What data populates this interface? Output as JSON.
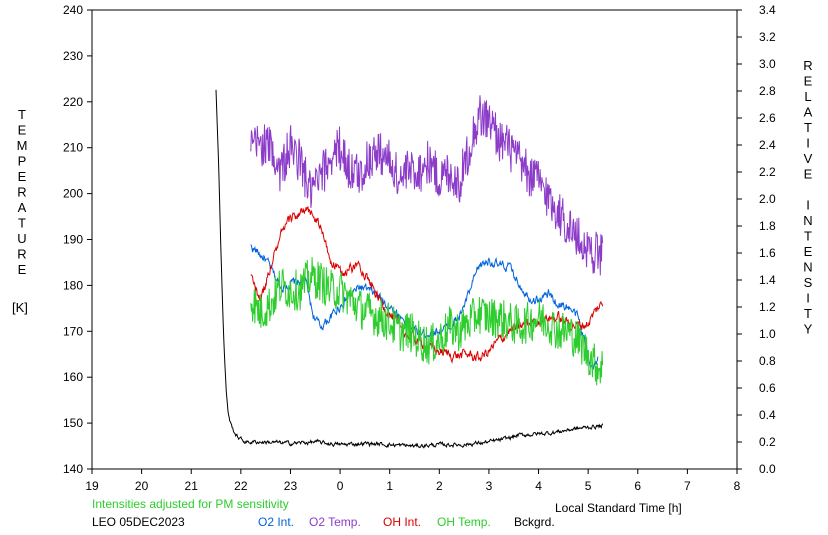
{
  "chart_data": {
    "type": "line",
    "x_axis": {
      "label": "Local Standard Time [h]",
      "ticks": [
        "19",
        "20",
        "21",
        "22",
        "23",
        "0",
        "1",
        "2",
        "3",
        "4",
        "5",
        "6",
        "7",
        "8"
      ]
    },
    "y_left": {
      "label_letters": [
        "T",
        "E",
        "M",
        "P",
        "E",
        "R",
        "A",
        "T",
        "U",
        "R",
        "E"
      ],
      "unit": "[K]",
      "range": [
        140,
        240
      ],
      "ticks": [
        "140",
        "150",
        "160",
        "170",
        "180",
        "190",
        "200",
        "210",
        "220",
        "230",
        "240"
      ]
    },
    "y_right": {
      "label_letters": [
        "R",
        "E",
        "L",
        "A",
        "T",
        "I",
        "V",
        "E",
        "",
        "I",
        "N",
        "T",
        "E",
        "N",
        "S",
        "I",
        "T",
        "Y"
      ],
      "range": [
        0,
        3.4
      ],
      "ticks": [
        "0.0",
        "0.2",
        "0.4",
        "0.6",
        "0.8",
        "1.0",
        "1.2",
        "1.4",
        "1.6",
        "1.8",
        "2.0",
        "2.2",
        "2.4",
        "2.6",
        "2.8",
        "3.0",
        "3.2",
        "3.4"
      ]
    },
    "note": "Intensities adjusted for PM sensitivity",
    "site_date": "LEO 05DEC2023",
    "legend_position": "bottom",
    "series": [
      {
        "name": "O2 Int.",
        "color": "#0064dc",
        "axis": "right",
        "smooth": true,
        "noise": 0.035,
        "points": [
          [
            22.2,
            1.65
          ],
          [
            22.5,
            1.55
          ],
          [
            22.8,
            1.35
          ],
          [
            23.1,
            1.38
          ],
          [
            23.3,
            1.4
          ],
          [
            23.45,
            1.15
          ],
          [
            23.6,
            1.05
          ],
          [
            23.8,
            1.12
          ],
          [
            24.1,
            1.25
          ],
          [
            24.4,
            1.35
          ],
          [
            24.7,
            1.3
          ],
          [
            25.0,
            1.2
          ],
          [
            25.3,
            1.1
          ],
          [
            25.6,
            1.0
          ],
          [
            25.9,
            1.02
          ],
          [
            26.2,
            1.05
          ],
          [
            26.4,
            1.12
          ],
          [
            26.6,
            1.3
          ],
          [
            26.8,
            1.5
          ],
          [
            27.0,
            1.55
          ],
          [
            27.2,
            1.5
          ],
          [
            27.4,
            1.5
          ],
          [
            27.6,
            1.38
          ],
          [
            27.8,
            1.28
          ],
          [
            28.0,
            1.25
          ],
          [
            28.2,
            1.3
          ],
          [
            28.4,
            1.22
          ],
          [
            28.6,
            1.2
          ],
          [
            28.8,
            1.12
          ],
          [
            29.0,
            0.85
          ],
          [
            29.1,
            0.75
          ],
          [
            29.2,
            0.8
          ]
        ]
      },
      {
        "name": "O2 Temp.",
        "color": "#8c3cc8",
        "axis": "left",
        "smooth": false,
        "noise": 5,
        "points": [
          [
            22.2,
            210
          ],
          [
            22.4,
            211
          ],
          [
            22.6,
            210
          ],
          [
            22.8,
            205
          ],
          [
            23.0,
            210
          ],
          [
            23.2,
            207
          ],
          [
            23.4,
            200
          ],
          [
            23.6,
            203
          ],
          [
            23.8,
            208
          ],
          [
            24.0,
            210
          ],
          [
            24.2,
            205
          ],
          [
            24.4,
            204
          ],
          [
            24.6,
            208
          ],
          [
            24.8,
            209
          ],
          [
            25.0,
            207
          ],
          [
            25.2,
            203
          ],
          [
            25.4,
            205
          ],
          [
            25.6,
            205
          ],
          [
            25.8,
            207
          ],
          [
            26.0,
            203
          ],
          [
            26.2,
            205
          ],
          [
            26.4,
            202
          ],
          [
            26.6,
            210
          ],
          [
            26.8,
            217
          ],
          [
            27.0,
            216
          ],
          [
            27.2,
            212
          ],
          [
            27.4,
            210
          ],
          [
            27.6,
            207
          ],
          [
            27.8,
            204
          ],
          [
            28.0,
            203
          ],
          [
            28.2,
            199
          ],
          [
            28.4,
            196
          ],
          [
            28.6,
            193
          ],
          [
            28.8,
            190
          ],
          [
            29.0,
            188
          ],
          [
            29.2,
            187
          ],
          [
            29.3,
            186
          ]
        ]
      },
      {
        "name": "OH Int.",
        "color": "#dc0000",
        "axis": "right",
        "smooth": true,
        "noise": 0.04,
        "points": [
          [
            22.2,
            1.42
          ],
          [
            22.4,
            1.25
          ],
          [
            22.6,
            1.5
          ],
          [
            22.8,
            1.72
          ],
          [
            23.0,
            1.85
          ],
          [
            23.2,
            1.9
          ],
          [
            23.4,
            1.9
          ],
          [
            23.6,
            1.8
          ],
          [
            23.8,
            1.55
          ],
          [
            24.0,
            1.45
          ],
          [
            24.2,
            1.48
          ],
          [
            24.4,
            1.52
          ],
          [
            24.6,
            1.38
          ],
          [
            24.8,
            1.25
          ],
          [
            25.0,
            1.15
          ],
          [
            25.2,
            1.05
          ],
          [
            25.4,
            0.98
          ],
          [
            25.6,
            0.95
          ],
          [
            25.8,
            0.9
          ],
          [
            26.0,
            0.87
          ],
          [
            26.2,
            0.85
          ],
          [
            26.4,
            0.84
          ],
          [
            26.6,
            0.85
          ],
          [
            26.8,
            0.82
          ],
          [
            27.0,
            0.87
          ],
          [
            27.2,
            0.95
          ],
          [
            27.4,
            1.02
          ],
          [
            27.6,
            1.05
          ],
          [
            27.8,
            1.08
          ],
          [
            28.0,
            1.1
          ],
          [
            28.2,
            1.12
          ],
          [
            28.4,
            1.12
          ],
          [
            28.6,
            1.08
          ],
          [
            28.8,
            1.06
          ],
          [
            29.0,
            1.08
          ],
          [
            29.2,
            1.2
          ],
          [
            29.3,
            1.22
          ]
        ]
      },
      {
        "name": "OH Temp.",
        "color": "#2ccd2c",
        "axis": "left",
        "smooth": false,
        "noise": 4.5,
        "points": [
          [
            22.2,
            177
          ],
          [
            22.4,
            174
          ],
          [
            22.6,
            176
          ],
          [
            22.8,
            180
          ],
          [
            23.0,
            179
          ],
          [
            23.2,
            179
          ],
          [
            23.4,
            182
          ],
          [
            23.6,
            181
          ],
          [
            23.8,
            179
          ],
          [
            24.0,
            179
          ],
          [
            24.2,
            177
          ],
          [
            24.4,
            175
          ],
          [
            24.6,
            174
          ],
          [
            24.8,
            173
          ],
          [
            25.0,
            172
          ],
          [
            25.2,
            170
          ],
          [
            25.4,
            170
          ],
          [
            25.6,
            168
          ],
          [
            25.8,
            167
          ],
          [
            26.0,
            168
          ],
          [
            26.2,
            171
          ],
          [
            26.4,
            170
          ],
          [
            26.6,
            172
          ],
          [
            26.8,
            174
          ],
          [
            27.0,
            173
          ],
          [
            27.2,
            173
          ],
          [
            27.4,
            172
          ],
          [
            27.6,
            171
          ],
          [
            27.8,
            172
          ],
          [
            28.0,
            173
          ],
          [
            28.2,
            172
          ],
          [
            28.4,
            170
          ],
          [
            28.6,
            170
          ],
          [
            28.8,
            168
          ],
          [
            29.0,
            165
          ],
          [
            29.2,
            162
          ],
          [
            29.3,
            163
          ]
        ]
      },
      {
        "name": "Bckgrd.",
        "color": "#000000",
        "axis": "right",
        "smooth": true,
        "noise": 0.015,
        "points": [
          [
            21.5,
            2.8
          ],
          [
            21.55,
            2.3
          ],
          [
            21.6,
            1.6
          ],
          [
            21.65,
            1.0
          ],
          [
            21.7,
            0.6
          ],
          [
            21.75,
            0.4
          ],
          [
            21.8,
            0.33
          ],
          [
            21.9,
            0.25
          ],
          [
            22.0,
            0.22
          ],
          [
            22.1,
            0.2
          ],
          [
            22.2,
            0.2
          ],
          [
            22.5,
            0.2
          ],
          [
            23.0,
            0.19
          ],
          [
            23.5,
            0.2
          ],
          [
            24.0,
            0.18
          ],
          [
            24.5,
            0.19
          ],
          [
            25.0,
            0.18
          ],
          [
            25.5,
            0.17
          ],
          [
            26.0,
            0.18
          ],
          [
            26.5,
            0.18
          ],
          [
            27.0,
            0.2
          ],
          [
            27.3,
            0.22
          ],
          [
            27.6,
            0.25
          ],
          [
            28.0,
            0.26
          ],
          [
            28.3,
            0.27
          ],
          [
            28.6,
            0.29
          ],
          [
            29.0,
            0.31
          ],
          [
            29.3,
            0.32
          ]
        ]
      }
    ]
  }
}
